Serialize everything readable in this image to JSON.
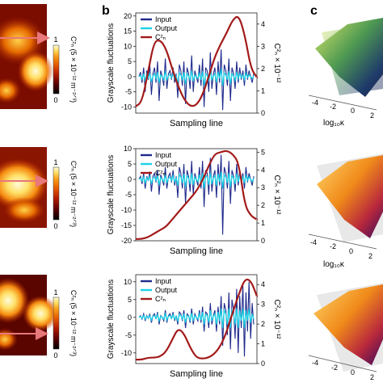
{
  "panel_labels": [
    "b",
    "c"
  ],
  "heatmap": {
    "colorbar_label": "C²ₙ (5 × 10⁻¹² m⁻²ᐟ³)",
    "ticks": [
      "1",
      "0"
    ],
    "colormap": [
      "#000000",
      "#5a0000",
      "#b01a00",
      "#e65b00",
      "#f9a01b",
      "#ffe067",
      "#fffbd9"
    ],
    "arrow_color": "#e8787a"
  },
  "surface": {
    "xlabel": "log₁₀κ",
    "tick_sets": [
      [
        "-4",
        "-2",
        "0",
        "2"
      ],
      [
        "-4",
        "-2",
        "0",
        "2"
      ],
      [
        "-4",
        "-2",
        "0",
        "2"
      ]
    ]
  },
  "chart_data": [
    {
      "type": "line",
      "ylabel": "Grayscale fluctuations",
      "ylabel_right": "C²ₙ × 10⁻¹²",
      "xlabel": "Sampling line",
      "ylim": [
        -12,
        21
      ],
      "yticks": [
        -10,
        -5,
        0,
        5,
        10,
        15,
        20
      ],
      "y2lim": [
        0,
        4.5
      ],
      "y2ticks": [
        0,
        1,
        2,
        3,
        4
      ],
      "legend": [
        "Input",
        "Output",
        "C²ₙ"
      ],
      "series": [
        {
          "name": "Input",
          "color": "#1f2a8c",
          "values": [
            0,
            1.5,
            -2,
            3,
            -5,
            2,
            -1,
            4,
            -6,
            1,
            3,
            -2,
            5,
            -8,
            2,
            0,
            -3,
            6,
            -4,
            1,
            2,
            -1,
            3,
            -2,
            1,
            -7,
            4,
            2,
            -3,
            5,
            -9,
            3,
            1,
            -4,
            7,
            -5,
            2,
            0,
            -2,
            4,
            -3,
            6,
            -10,
            3,
            2,
            -5,
            8,
            -4,
            1,
            3,
            -6,
            5,
            -2,
            9,
            -11,
            4,
            2,
            -3,
            6,
            -8,
            3,
            1,
            -4,
            5,
            -2,
            3,
            -1,
            2,
            -3,
            4,
            -1,
            2,
            0,
            -2,
            1
          ]
        },
        {
          "name": "Output",
          "color": "#19d3e6",
          "values": [
            0,
            0.5,
            -0.8,
            1,
            -1.5,
            0.8,
            -0.4,
            1.2,
            -1.8,
            0.3,
            1,
            -0.6,
            1.5,
            -2,
            0.6,
            0,
            -1,
            1.8,
            -1.2,
            0.4,
            0.7,
            -0.4,
            1,
            -0.6,
            0.3,
            -2,
            1.2,
            0.6,
            -1,
            1.5,
            -2.5,
            1,
            0.3,
            -1.2,
            2,
            -1.5,
            0.6,
            0,
            -0.6,
            1.2,
            -1,
            1.8,
            -3,
            1,
            0.6,
            -1.5,
            2.4,
            -1.2,
            0.3,
            1,
            -1.8,
            1.5,
            -0.6,
            2.6,
            -3,
            1.2,
            0.6,
            -1,
            1.8,
            -2.4,
            1,
            0.3,
            -1.2,
            1.5,
            -0.6,
            1,
            -0.3,
            0.6,
            -1,
            1.2,
            -0.3,
            0.6,
            0,
            -0.6,
            0.3
          ]
        },
        {
          "name": "C²ₙ",
          "color": "#a31a1a",
          "axis": "right",
          "x": [
            0,
            0.05,
            0.1,
            0.15,
            0.2,
            0.25,
            0.3,
            0.35,
            0.4,
            0.45,
            0.5,
            0.55,
            0.6,
            0.65,
            0.7,
            0.75,
            0.8,
            0.85,
            0.9,
            0.95,
            1
          ],
          "values": [
            0.3,
            0.5,
            1.8,
            3.2,
            3.3,
            2.9,
            2.0,
            1.2,
            0.6,
            0.3,
            0.35,
            0.8,
            1.6,
            2.5,
            3.1,
            3.6,
            4.2,
            4.4,
            3.5,
            2.0,
            1.6
          ]
        }
      ]
    },
    {
      "type": "line",
      "ylabel": "Grayscale fluctuations",
      "ylabel_right": "C²ₙ × 10⁻¹²",
      "xlabel": "Sampling line",
      "ylim": [
        -20,
        10
      ],
      "yticks": [
        -20,
        -15,
        -10,
        -5,
        0,
        5,
        10
      ],
      "y2lim": [
        0,
        5.2
      ],
      "y2ticks": [
        0,
        1,
        2,
        3,
        4,
        5
      ],
      "legend": [
        "Input",
        "Output",
        "C²ₙ"
      ],
      "series": [
        {
          "name": "Input",
          "color": "#1f2a8c",
          "values": [
            0,
            1,
            -1.5,
            2,
            -3,
            1,
            -0.5,
            2.5,
            -4,
            1,
            2,
            -1,
            3,
            -5,
            1.5,
            0,
            -2,
            4,
            -3,
            1,
            2,
            -1,
            3,
            -2,
            1,
            -6,
            4,
            2,
            -3,
            5,
            -8,
            3,
            1,
            -4,
            6,
            -5,
            2,
            0,
            -2,
            4,
            -3,
            6,
            -9,
            3,
            2,
            -5,
            7,
            -4,
            1,
            3,
            -6,
            5,
            -2,
            8,
            -18,
            4,
            2,
            -3,
            6,
            -8,
            3,
            1,
            -4,
            5,
            -2,
            3,
            -1,
            2,
            -3,
            4,
            -1,
            2,
            0,
            -2,
            1
          ]
        },
        {
          "name": "Output",
          "color": "#19d3e6",
          "values": [
            0,
            0.4,
            -0.6,
            0.8,
            -1.2,
            0.5,
            -0.3,
            1,
            -1.5,
            0.4,
            0.8,
            -0.4,
            1.2,
            -1.8,
            0.6,
            0,
            -0.8,
            1.5,
            -1.2,
            0.4,
            0.8,
            -0.4,
            1.2,
            -0.8,
            0.4,
            -2,
            1.5,
            0.8,
            -1.2,
            1.8,
            -2.5,
            1.2,
            0.4,
            -1.5,
            2,
            -1.8,
            0.8,
            0,
            -0.8,
            1.5,
            -1.2,
            2,
            -3,
            1.2,
            0.8,
            -1.8,
            2.2,
            -1.5,
            0.4,
            1.2,
            -2,
            1.8,
            -0.8,
            2.4,
            -3,
            1.5,
            0.8,
            -1.2,
            2,
            -2.5,
            1.2,
            0.4,
            -1.5,
            1.8,
            -0.8,
            1.2,
            -0.4,
            0.8,
            -1.2,
            1.5,
            -0.4,
            0.8,
            0,
            -0.8,
            0.4
          ]
        },
        {
          "name": "C²ₙ",
          "color": "#a31a1a",
          "axis": "right",
          "x": [
            0,
            0.05,
            0.1,
            0.15,
            0.2,
            0.25,
            0.3,
            0.35,
            0.4,
            0.45,
            0.5,
            0.55,
            0.6,
            0.65,
            0.7,
            0.75,
            0.8,
            0.85,
            0.9,
            0.95,
            1
          ],
          "values": [
            0.1,
            0.1,
            0.2,
            0.4,
            0.6,
            0.8,
            1.2,
            1.6,
            2.0,
            2.4,
            2.8,
            3.4,
            4.2,
            4.9,
            5.0,
            5.1,
            4.9,
            4.4,
            2.0,
            1.4,
            1.2
          ]
        }
      ]
    },
    {
      "type": "line",
      "ylabel": "Grayscale fluctuations",
      "ylabel_right": "C²ₙ × 10⁻¹²",
      "xlabel": "Sampling line",
      "ylim": [
        -13,
        12
      ],
      "yticks": [
        -10,
        -5,
        0,
        5,
        10
      ],
      "y2lim": [
        0,
        4.5
      ],
      "y2ticks": [
        0,
        1,
        2,
        3,
        4
      ],
      "legend": [
        "Input",
        "Output",
        "C²ₙ"
      ],
      "series": [
        {
          "name": "Input",
          "color": "#1f2a8c",
          "values": [
            0,
            0.5,
            -0.5,
            1,
            -1,
            0.5,
            -0.3,
            1,
            -1.5,
            0.5,
            1,
            -0.5,
            1.5,
            -2,
            0.5,
            0,
            -1,
            2,
            -1.5,
            0.5,
            1,
            -0.5,
            1.5,
            -1,
            0.5,
            -2,
            1.5,
            1,
            -1,
            2,
            -3,
            1,
            0.5,
            -1.5,
            2.5,
            -2,
            1,
            0,
            -1,
            2,
            -1.5,
            3,
            -4,
            1.5,
            1,
            -3,
            4,
            -2,
            0.5,
            2,
            -4,
            3,
            -2,
            6,
            -8,
            4,
            2,
            -5,
            7,
            -9,
            5,
            2,
            -6,
            8,
            -10,
            6,
            -3,
            9,
            -11,
            7,
            -4,
            10,
            -6,
            4,
            -2
          ]
        },
        {
          "name": "Output",
          "color": "#19d3e6",
          "values": [
            0,
            0.3,
            -0.3,
            0.5,
            -0.5,
            0.3,
            -0.2,
            0.5,
            -0.8,
            0.3,
            0.5,
            -0.3,
            0.8,
            -1,
            0.3,
            0,
            -0.5,
            1,
            -0.8,
            0.3,
            0.5,
            -0.3,
            0.8,
            -0.5,
            0.3,
            -1,
            0.8,
            0.5,
            -0.5,
            1,
            -1.5,
            0.5,
            0.3,
            -0.8,
            1.2,
            -1,
            0.5,
            0,
            -0.5,
            1,
            -0.8,
            1.5,
            -2,
            0.8,
            0.5,
            -1.5,
            2,
            -1,
            0.3,
            1,
            -2,
            1.5,
            -1,
            2.5,
            -3,
            2,
            1,
            -2,
            2.5,
            -3,
            2,
            1,
            -2,
            2.5,
            -3,
            2,
            -1,
            2.5,
            -3,
            2,
            -1,
            2.5,
            -1.5,
            1,
            -0.5
          ]
        },
        {
          "name": "C²ₙ",
          "color": "#a31a1a",
          "axis": "right",
          "x": [
            0,
            0.05,
            0.1,
            0.15,
            0.2,
            0.25,
            0.3,
            0.35,
            0.4,
            0.45,
            0.5,
            0.55,
            0.6,
            0.65,
            0.7,
            0.75,
            0.8,
            0.85,
            0.9,
            0.95,
            1
          ],
          "values": [
            0.2,
            0.2,
            0.3,
            0.3,
            0.35,
            0.6,
            1.2,
            1.8,
            1.5,
            0.8,
            0.3,
            0.25,
            0.3,
            0.5,
            0.9,
            1.6,
            2.6,
            3.5,
            4.3,
            4.2,
            3.4
          ]
        }
      ]
    }
  ]
}
